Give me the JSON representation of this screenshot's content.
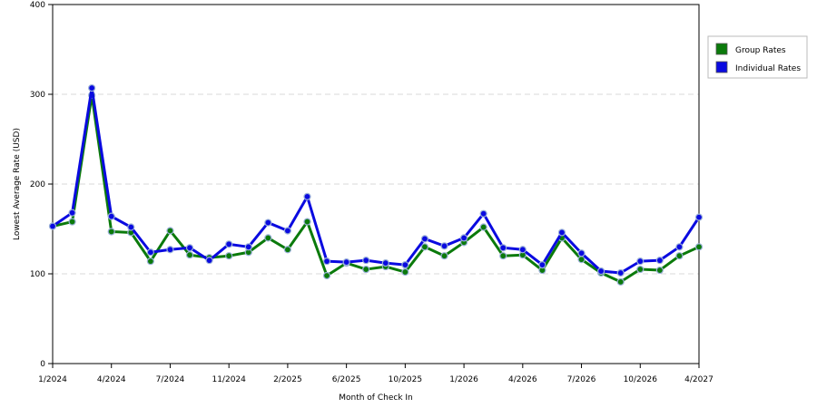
{
  "chart_data": {
    "type": "line",
    "xlabel": "Month of Check In",
    "ylabel": "Lowest Average Rate (USD)",
    "ylim": [
      0,
      400
    ],
    "yticks": [
      0,
      100,
      200,
      300,
      400
    ],
    "ytick_labels": [
      "0",
      "100",
      "200",
      "300",
      "400"
    ],
    "xtick_labels": [
      "1/2024",
      "4/2024",
      "7/2024",
      "11/2024",
      "2/2025",
      "6/2025",
      "10/2025",
      "1/2026",
      "4/2026",
      "7/2026",
      "10/2026",
      "4/2027"
    ],
    "xtick_month_index": [
      0,
      3,
      6,
      9,
      12,
      15,
      18,
      21,
      24,
      27,
      30,
      33
    ],
    "month_count": 34,
    "grid": "horizontal dashed",
    "legend_position": "right",
    "series": [
      {
        "name": "Group Rates",
        "color": "#0b7a0b",
        "values": [
          153,
          158,
          299,
          147,
          146,
          114,
          148,
          121,
          118,
          120,
          124,
          140,
          127,
          158,
          98,
          112,
          105,
          108,
          102,
          130,
          120,
          135,
          152,
          120,
          121,
          104,
          140,
          116,
          101,
          91,
          105,
          104,
          120,
          130
        ]
      },
      {
        "name": "Individual Rates",
        "color": "#0a0ae0",
        "values": [
          153,
          168,
          307,
          164,
          152,
          124,
          127,
          129,
          115,
          133,
          130,
          157,
          148,
          186,
          114,
          113,
          115,
          112,
          110,
          139,
          131,
          140,
          167,
          129,
          127,
          110,
          146,
          123,
          103,
          101,
          114,
          115,
          130,
          163
        ]
      }
    ]
  }
}
